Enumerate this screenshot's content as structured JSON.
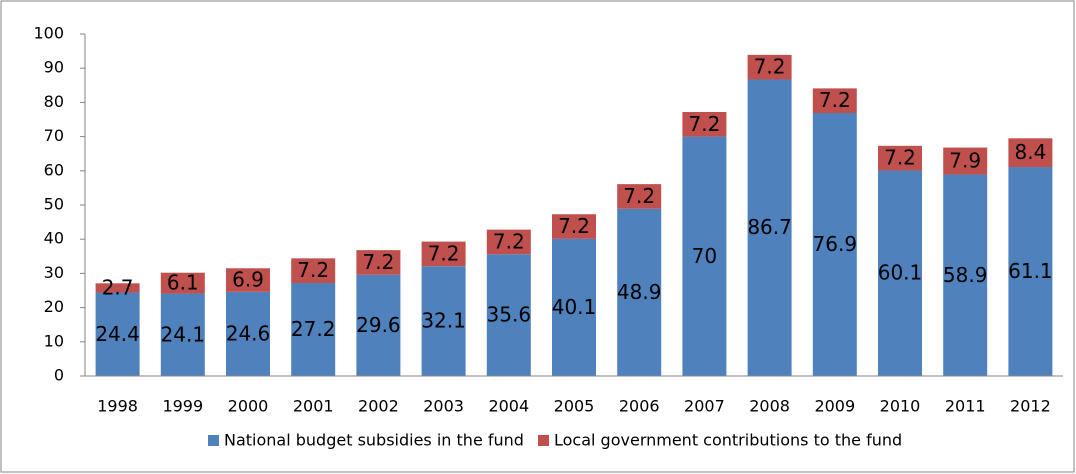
{
  "chart_data": {
    "type": "stacked_bar",
    "categories": [
      "1998",
      "1999",
      "2000",
      "2001",
      "2002",
      "2003",
      "2004",
      "2005",
      "2006",
      "2007",
      "2008",
      "2009",
      "2010",
      "2011",
      "2012"
    ],
    "series": [
      {
        "name": "National budget subsidies in the fund",
        "color": "#4f81bd",
        "values": [
          24.4,
          24.1,
          24.6,
          27.2,
          29.6,
          32.1,
          35.6,
          40.1,
          48.9,
          70,
          86.7,
          76.9,
          60.1,
          58.9,
          61.1
        ]
      },
      {
        "name": "Local government contributions to the fund",
        "color": "#c0504d",
        "values": [
          2.7,
          6.1,
          6.9,
          7.2,
          7.2,
          7.2,
          7.2,
          7.2,
          7.2,
          7.2,
          7.2,
          7.2,
          7.2,
          7.9,
          8.4
        ]
      }
    ],
    "ylim": [
      0,
      100
    ],
    "yticks": [
      0,
      10,
      20,
      30,
      40,
      50,
      60,
      70,
      80,
      90,
      100
    ],
    "grid": false,
    "legend": "bottom"
  }
}
